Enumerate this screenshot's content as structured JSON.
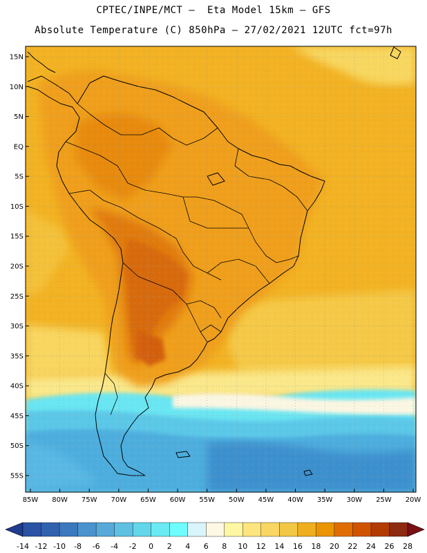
{
  "title_line1": "CPTEC/INPE/MCT –  Eta Model 15km – GFS",
  "title_line2": "Absolute Temperature (C) 850hPa – 27/02/2021 12UTC fct=97h",
  "lat_labels": [
    "15N",
    "10N",
    "5N",
    "EQ",
    "5S",
    "10S",
    "15S",
    "20S",
    "25S",
    "30S",
    "35S",
    "40S",
    "45S",
    "50S",
    "55S"
  ],
  "lat_values": [
    15,
    10,
    5,
    0,
    -5,
    -10,
    -15,
    -20,
    -25,
    -30,
    -35,
    -40,
    -45,
    -50,
    -55
  ],
  "lon_labels": [
    "85W",
    "80W",
    "75W",
    "70W",
    "65W",
    "60W",
    "55W",
    "50W",
    "45W",
    "40W",
    "35W",
    "30W",
    "25W",
    "20W"
  ],
  "lon_values": [
    -85,
    -80,
    -75,
    -70,
    -65,
    -60,
    -55,
    -50,
    -45,
    -40,
    -35,
    -30,
    -25,
    -20
  ],
  "colorbar": {
    "labels": [
      "-14",
      "-12",
      "-10",
      "-8",
      "-6",
      "-4",
      "-2",
      "0",
      "2",
      "4",
      "6",
      "8",
      "10",
      "12",
      "14",
      "16",
      "18",
      "20",
      "22",
      "24",
      "26",
      "28"
    ],
    "colors": [
      "#2a52a5",
      "#3061ae",
      "#3b78bd",
      "#4a93ce",
      "#56a9d8",
      "#5ec0e2",
      "#63d6ea",
      "#6aeaf2",
      "#6ffcfc",
      "#d8f5fb",
      "#fdf8e4",
      "#fdf6a2",
      "#fce57e",
      "#f9d663",
      "#f2c744",
      "#eeae1e",
      "#ea9400",
      "#e06d04",
      "#d05400",
      "#b23b00",
      "#8d2a10"
    ],
    "low_color": "#1e3c90",
    "high_color": "#7a1014"
  },
  "legend_colors": {
    "ocean_north": "#f2b223",
    "ocean_mid": "#f8d760",
    "continent": "#ef9f1a",
    "hot_core": "#d76a10",
    "cool_band": "#6ae6f2",
    "cold_ocean": "#4eaede"
  }
}
